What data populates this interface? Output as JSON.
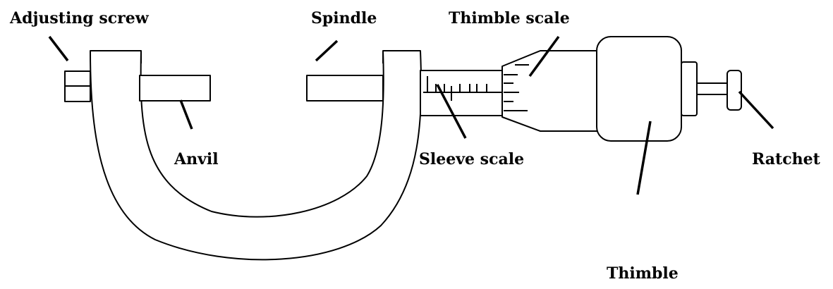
{
  "labels": {
    "adjusting_screw": "Adjusting screw",
    "spindle": "Spindle",
    "thimble_scale": "Thimble scale",
    "anvil": "Anvil",
    "sleeve_scale": "Sleeve scale",
    "ratchet": "Ratchet",
    "thimble": "Thimble"
  }
}
